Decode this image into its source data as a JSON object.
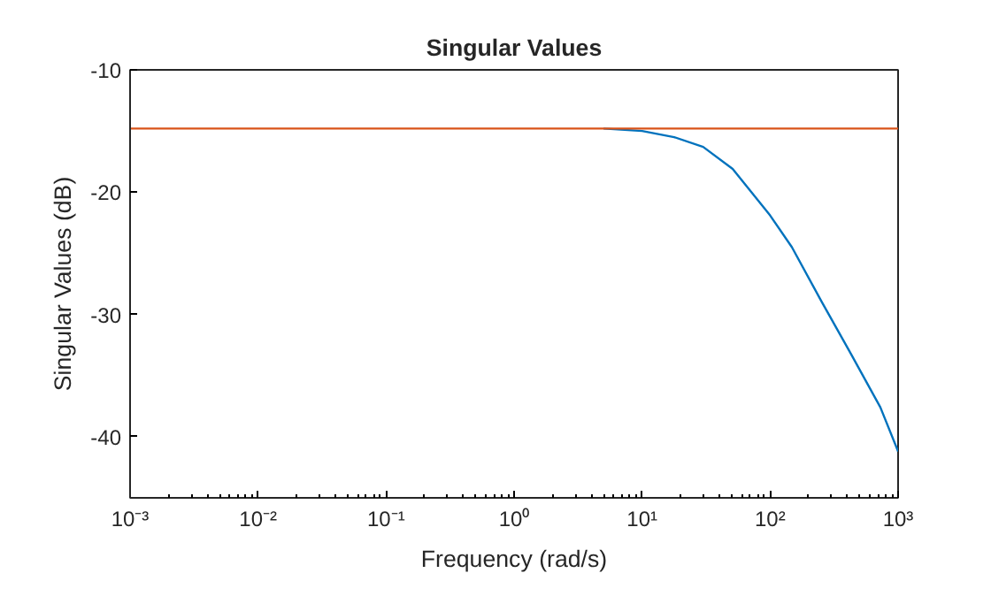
{
  "chart_data": {
    "type": "line",
    "title": "Singular Values",
    "xlabel": "Frequency (rad/s)",
    "ylabel": "Singular Values (dB)",
    "log": "x",
    "grid": false,
    "marker": "none",
    "line_style": "solid",
    "xlim": [
      0.001,
      1000
    ],
    "ylim": [
      -45,
      -10
    ],
    "xticks": [
      {
        "value": 0.001,
        "label": "10⁻³"
      },
      {
        "value": 0.01,
        "label": "10⁻²"
      },
      {
        "value": 0.1,
        "label": "10⁻¹"
      },
      {
        "value": 1,
        "label": "10⁰"
      },
      {
        "value": 10,
        "label": "10¹"
      },
      {
        "value": 100,
        "label": "10²"
      },
      {
        "value": 1000,
        "label": "10³"
      }
    ],
    "yticks": [
      -40,
      -30,
      -20,
      -10
    ],
    "series": [
      {
        "color": "#0072bd",
        "x": [
          5,
          10,
          17.8,
          30,
          51,
          100,
          148,
          251,
          427,
          727,
          1000
        ],
        "values": [
          -14.8,
          -15.0,
          -15.5,
          -16.3,
          -18.1,
          -21.9,
          -24.5,
          -28.9,
          -33.2,
          -37.6,
          -41.2
        ]
      },
      {
        "color": "#d95319",
        "x": [
          0.001,
          1000
        ],
        "values": [
          -14.8,
          -14.8
        ]
      }
    ]
  }
}
